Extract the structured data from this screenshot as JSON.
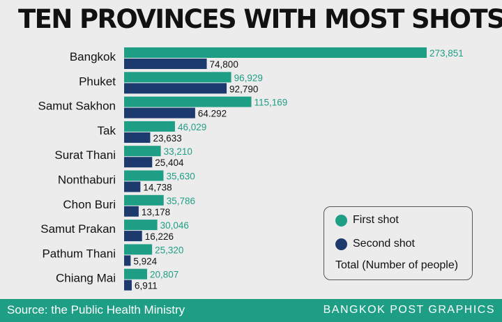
{
  "header": {
    "title": "TEN PROVINCES WITH MOST SHOTS"
  },
  "legend": {
    "first_label": "First shot",
    "second_label": "Second shot",
    "note": "Total (Number of people)"
  },
  "footer": {
    "source": "Source: the Public Health Ministry",
    "credit": "BANGKOK POST GRAPHICS"
  },
  "colors": {
    "first": "#1e9e85",
    "second": "#1d3a6e"
  },
  "chart_data": {
    "type": "bar",
    "orientation": "horizontal",
    "title": "TEN PROVINCES WITH MOST SHOTS",
    "categories": [
      "Bangkok",
      "Phuket",
      "Samut Sakhon",
      "Tak",
      "Surat Thani",
      "Nonthaburi",
      "Chon Buri",
      "Samut Prakan",
      "Pathum Thani",
      "Chiang Mai"
    ],
    "series": [
      {
        "name": "First shot",
        "values": [
          273851,
          96929,
          115169,
          46029,
          33210,
          35630,
          35786,
          30046,
          25320,
          20807
        ],
        "labels": [
          "273,851",
          "96,929",
          "115,169",
          "46,029",
          "33,210",
          "35,630",
          "35,786",
          "30,046",
          "25,320",
          "20,807"
        ]
      },
      {
        "name": "Second shot",
        "values": [
          74800,
          92790,
          64292,
          23633,
          25404,
          14738,
          13178,
          16226,
          5924,
          6911
        ],
        "labels": [
          "74,800",
          "92,790",
          "64.292",
          "23,633",
          "25,404",
          "14,738",
          "13,178",
          "16,226",
          "5,924",
          "6,911"
        ]
      }
    ],
    "xlim": [
      0,
      273851
    ],
    "legend": "bottom-right",
    "grid": false
  }
}
